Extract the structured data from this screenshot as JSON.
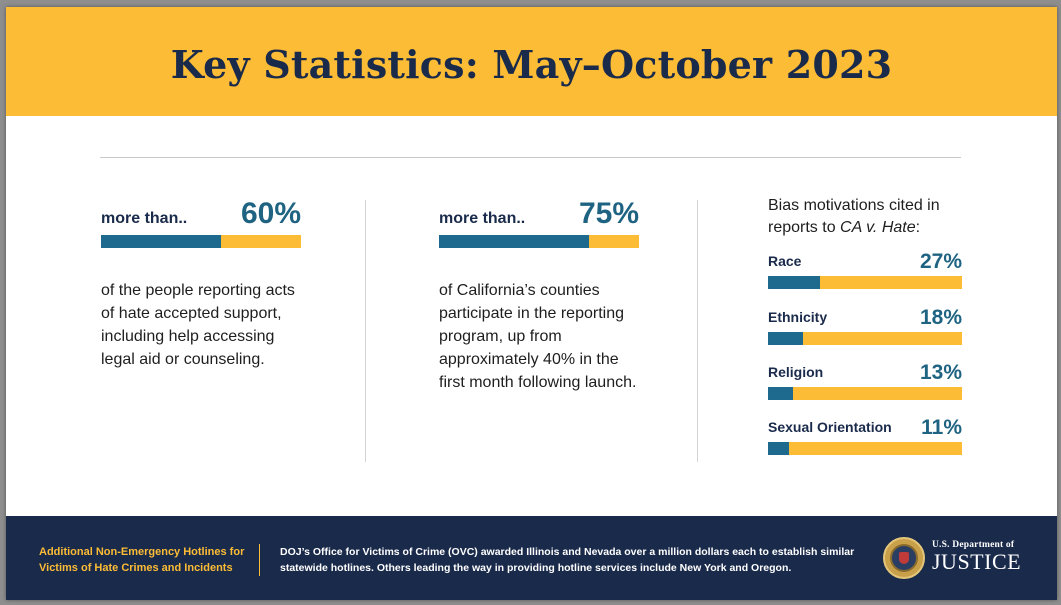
{
  "title": "Key Statistics: May–October 2023",
  "stats": [
    {
      "lead": "more than..",
      "value": "60%",
      "fraction": 0.6,
      "description": "of the people reporting acts of hate accepted support, including help accessing legal aid or counseling."
    },
    {
      "lead": "more than..",
      "value": "75%",
      "fraction": 0.75,
      "description": "of California’s counties participate in the reporting program, up from approximately 40% in the first month following launch."
    }
  ],
  "bias": {
    "title_prefix": "Bias motivations cited in reports to ",
    "title_italic": "CA v. Hate",
    "title_suffix": ":",
    "items": [
      {
        "label": "Race",
        "value": "27%",
        "fraction": 0.27
      },
      {
        "label": "Ethnicity",
        "value": "18%",
        "fraction": 0.18
      },
      {
        "label": "Religion",
        "value": "13%",
        "fraction": 0.13
      },
      {
        "label": "Sexual Orientation",
        "value": "11%",
        "fraction": 0.11
      }
    ]
  },
  "footer": {
    "left_text": "Additional Non-Emergency Hotlines for Victims of Hate Crimes and Incidents",
    "main_text": "DOJ’s Office for Victims of Crime (OVC) awarded Illinois and Nevada over a million dollars each to establish similar statewide hotlines. Others leading the way in providing hotline services include New York and Oregon.",
    "logo_line1": "U.S. Department of",
    "logo_line2": "JUSTICE"
  },
  "colors": {
    "accent_yellow": "#fcbc35",
    "navy": "#1a2a4b",
    "teal": "#1d6a8e"
  },
  "icons": {
    "seal": "doj-seal-icon"
  }
}
